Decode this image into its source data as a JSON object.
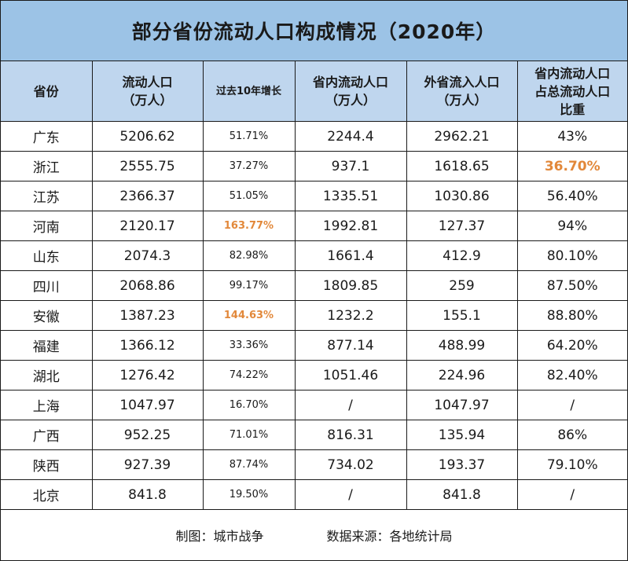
{
  "title": "部分省份流动人口构成情况（2020年）",
  "headers": {
    "province": "省份",
    "floating_1": "流动人口",
    "floating_2": "（万人）",
    "growth": "过去10年增长",
    "intra_1": "省内流动人口",
    "intra_2": "（万人）",
    "inter_1": "外省流入人口",
    "inter_2": "（万人）",
    "share_1": "省内流动人口",
    "share_2": "占总流动人口",
    "share_3": "比重"
  },
  "highlight_color": "#e2883a",
  "chart_data": {
    "type": "table",
    "title": "部分省份流动人口构成情况（2020年）",
    "columns": [
      "省份",
      "流动人口（万人）",
      "过去10年增长",
      "省内流动人口（万人）",
      "外省流入人口（万人）",
      "省内流动人口占总流动人口比重"
    ],
    "rows": [
      [
        "广东",
        "5206.62",
        "51.71%",
        "2244.4",
        "2962.21",
        "43%"
      ],
      [
        "浙江",
        "2555.75",
        "37.27%",
        "937.1",
        "1618.65",
        "36.70%"
      ],
      [
        "江苏",
        "2366.37",
        "51.05%",
        "1335.51",
        "1030.86",
        "56.40%"
      ],
      [
        "河南",
        "2120.17",
        "163.77%",
        "1992.81",
        "127.37",
        "94%"
      ],
      [
        "山东",
        "2074.3",
        "82.98%",
        "1661.4",
        "412.9",
        "80.10%"
      ],
      [
        "四川",
        "2068.86",
        "99.17%",
        "1809.85",
        "259",
        "87.50%"
      ],
      [
        "安徽",
        "1387.23",
        "144.63%",
        "1232.2",
        "155.1",
        "88.80%"
      ],
      [
        "福建",
        "1366.12",
        "33.36%",
        "877.14",
        "488.99",
        "64.20%"
      ],
      [
        "湖北",
        "1276.42",
        "74.22%",
        "1051.46",
        "224.96",
        "82.40%"
      ],
      [
        "上海",
        "1047.97",
        "16.70%",
        "/",
        "1047.97",
        "/"
      ],
      [
        "广西",
        "952.25",
        "71.01%",
        "816.31",
        "135.94",
        "86%"
      ],
      [
        "陕西",
        "927.39",
        "87.74%",
        "734.02",
        "193.37",
        "79.10%"
      ],
      [
        "北京",
        "841.8",
        "19.50%",
        "/",
        "841.8",
        "/"
      ]
    ],
    "highlighted_cells": [
      [
        1,
        5
      ],
      [
        3,
        2
      ],
      [
        6,
        2
      ]
    ]
  },
  "footer": {
    "maker": "制图：城市战争",
    "source": "数据来源：各地统计局"
  }
}
